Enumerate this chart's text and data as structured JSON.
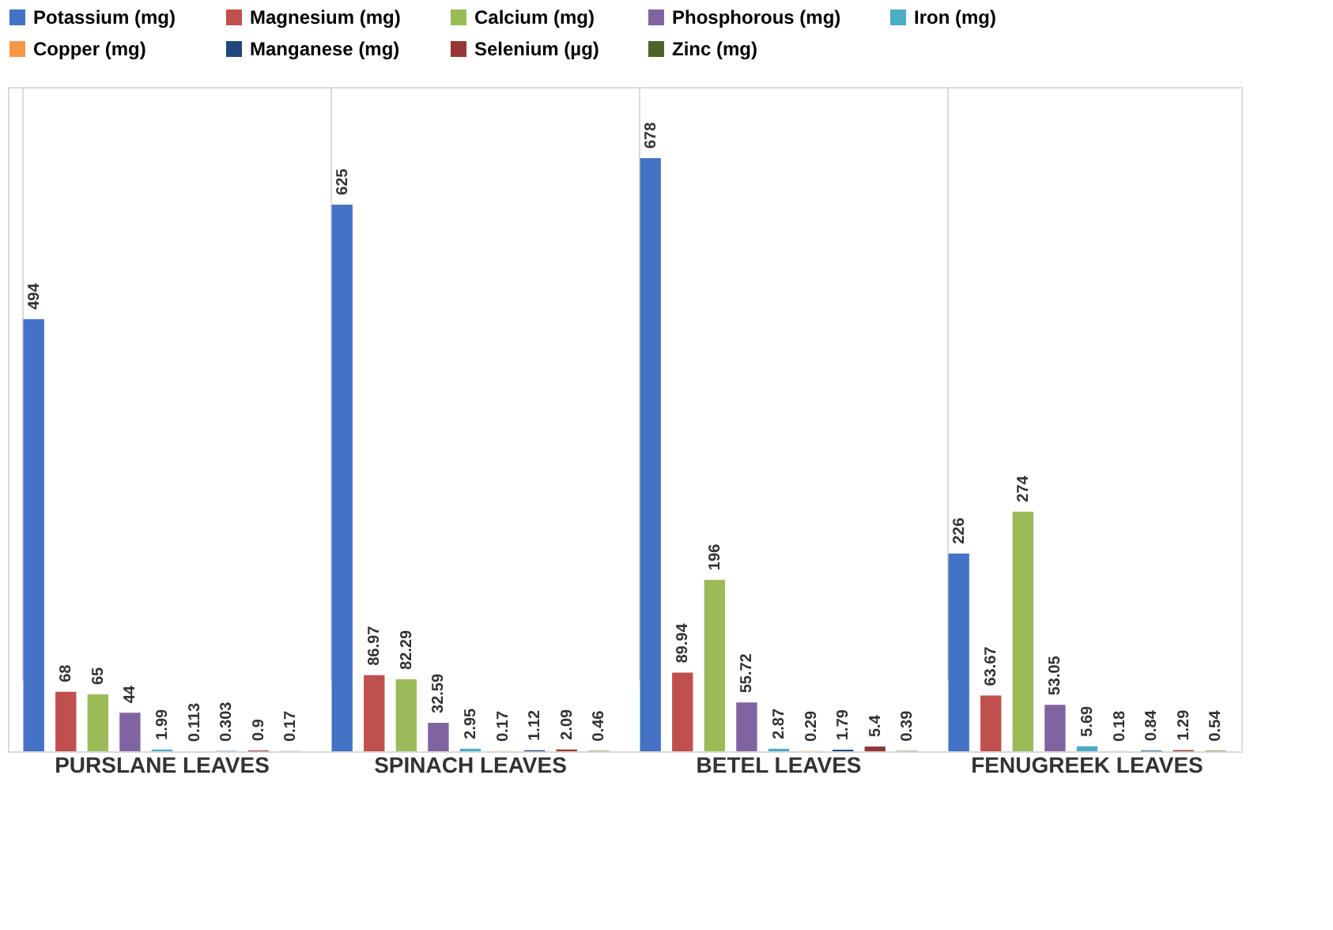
{
  "chart_data": {
    "type": "bar",
    "categories": [
      "PURSLANE LEAVES",
      "SPINACH LEAVES",
      "BETEL LEAVES",
      "FENUGREEK LEAVES"
    ],
    "series": [
      {
        "name": "Potassium (mg)",
        "color": "#4472c4",
        "values": [
          494,
          625,
          678,
          226
        ]
      },
      {
        "name": "Magnesium (mg)",
        "color": "#c0504d",
        "values": [
          68,
          86.97,
          89.94,
          63.67
        ]
      },
      {
        "name": "Calcium (mg)",
        "color": "#9bbb59",
        "values": [
          65,
          82.29,
          196,
          274
        ]
      },
      {
        "name": "Phosphorous (mg)",
        "color": "#8064a2",
        "values": [
          44,
          32.59,
          55.72,
          53.05
        ]
      },
      {
        "name": "Iron (mg)",
        "color": "#4bacc6",
        "values": [
          1.99,
          2.95,
          2.87,
          5.69
        ]
      },
      {
        "name": "Copper (mg)",
        "color": "#f79646",
        "values": [
          0.113,
          0.17,
          0.29,
          0.18
        ]
      },
      {
        "name": "Manganese (mg)",
        "color": "#1f497d",
        "values": [
          0.303,
          1.12,
          1.79,
          0.84
        ]
      },
      {
        "name": "Selenium (µg)",
        "color": "#953735",
        "values": [
          0.9,
          2.09,
          5.4,
          1.29
        ]
      },
      {
        "name": "Zinc (mg)",
        "color": "#4f6228",
        "values": [
          0.17,
          0.46,
          0.39,
          0.54
        ]
      }
    ],
    "data_labels": true,
    "legend": "top",
    "grid": "x",
    "tick_labels": "x"
  }
}
